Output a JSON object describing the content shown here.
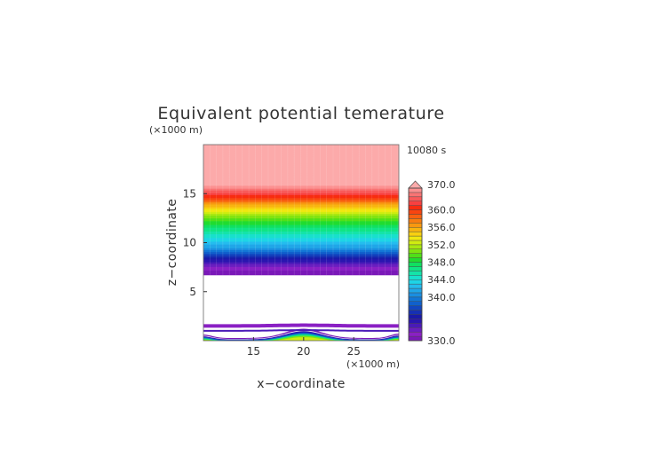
{
  "chart_data": {
    "type": "heatmap",
    "title": "Equivalent potential temerature",
    "xlabel": "x−coordinate",
    "ylabel": "z−coordinate",
    "x_unit": "(×1000 m)",
    "y_unit": "(×1000 m)",
    "time_label": "10080 s",
    "xlim": [
      10,
      29.5
    ],
    "ylim": [
      0,
      20
    ],
    "x_ticks": [
      15,
      20,
      25
    ],
    "y_ticks": [
      5,
      10,
      15
    ],
    "colorbar": {
      "min": 330.0,
      "max": 370.0,
      "tick_labels": [
        "330.0",
        "340.0",
        "344.0",
        "348.0",
        "352.0",
        "356.0",
        "360.0",
        "370.0"
      ],
      "tick_values": [
        330,
        340,
        344,
        348,
        352,
        356,
        360,
        370
      ],
      "levels": [
        330,
        331,
        332,
        333,
        334,
        335,
        336,
        337,
        338,
        339,
        340,
        341,
        342,
        343,
        344,
        345,
        346,
        347,
        348,
        349,
        350,
        351,
        352,
        353,
        354,
        355,
        356,
        357,
        358,
        359,
        360,
        362,
        364,
        366,
        368,
        370
      ],
      "colors": [
        "#7a18b8",
        "#8a20c4",
        "#6a1ec0",
        "#4a1ab8",
        "#2a16b0",
        "#1a1aa8",
        "#1630b4",
        "#1246c0",
        "#1060cc",
        "#1276d6",
        "#1a8ee0",
        "#20a6e8",
        "#24bcee",
        "#1ed4e6",
        "#18e0cc",
        "#14e4a8",
        "#10e484",
        "#10e060",
        "#20dc30",
        "#50e018",
        "#80e410",
        "#a8e810",
        "#d0ec10",
        "#f0e810",
        "#f8d010",
        "#f8b410",
        "#f89810",
        "#f87c10",
        "#f86010",
        "#f84410",
        "#f82c10",
        "#f84040",
        "#f85a5a",
        "#f87474",
        "#fc9090",
        "#fcaaaa"
      ],
      "over_color": "#fcaaaa"
    },
    "upper_layer": {
      "z_bottom": 6.7,
      "z_top": 20.0,
      "profile": [
        [
          6.7,
          330
        ],
        [
          7.6,
          332
        ],
        [
          8.5,
          336
        ],
        [
          9.5,
          341
        ],
        [
          10.5,
          344
        ],
        [
          11.5,
          347
        ],
        [
          12.5,
          350
        ],
        [
          13.2,
          353
        ],
        [
          13.9,
          356
        ],
        [
          14.4,
          359
        ],
        [
          14.9,
          362
        ],
        [
          15.3,
          366
        ],
        [
          15.8,
          370
        ],
        [
          20.0,
          372
        ]
      ]
    },
    "lower_layer": {
      "isolines": [
        {
          "z": 1.5,
          "value": 331
        },
        {
          "z": 1.0,
          "value": 333
        }
      ],
      "dome_x_center": 20.0,
      "dome_peak_z": 1.1,
      "base_values": [
        346,
        350,
        352
      ]
    }
  }
}
